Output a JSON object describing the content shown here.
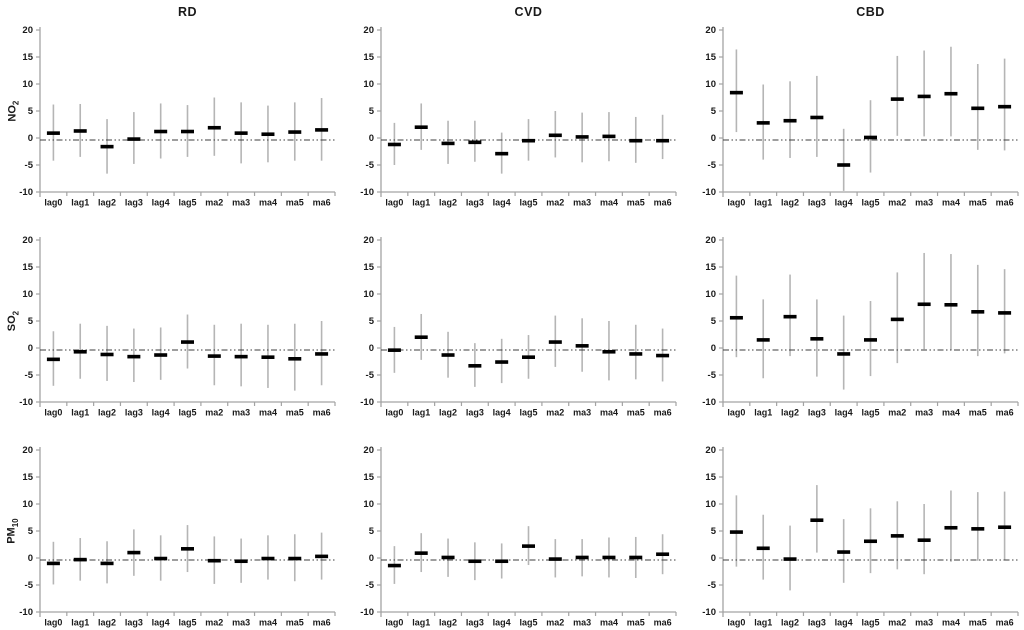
{
  "figure": {
    "background": "#ffffff",
    "columns": [
      "RD",
      "CVD",
      "CBD"
    ],
    "rows": [
      {
        "base": "NO",
        "sub": "2"
      },
      {
        "base": "SO",
        "sub": "2"
      },
      {
        "base": "PM",
        "sub": "10"
      }
    ]
  },
  "colors": {
    "error_bar": "#b5b5b5",
    "marker": "#000000",
    "axis": "#a3a3a3",
    "zero_line": "#3c3c3c",
    "text": "#1a1a1a"
  },
  "axis": {
    "ylim": [
      -10,
      20
    ],
    "yticks": [
      20,
      15,
      10,
      5,
      0,
      -5,
      -10
    ],
    "categories": [
      "lag0",
      "lag1",
      "lag2",
      "lag3",
      "lag4",
      "lag5",
      "ma2",
      "ma3",
      "ma4",
      "ma5",
      "ma6"
    ],
    "zero_reference": 0,
    "grid": "off",
    "legend": "none"
  },
  "chart_data": [
    {
      "type": "errorbar",
      "title": "RD",
      "outcome": "RD",
      "pollutant": "NO2",
      "categories": [
        "lag0",
        "lag1",
        "lag2",
        "lag3",
        "lag4",
        "lag5",
        "ma2",
        "ma3",
        "ma4",
        "ma5",
        "ma6"
      ],
      "values_lo_est_hi": [
        [
          -4.2,
          0.9,
          6.2
        ],
        [
          -3.5,
          1.3,
          6.3
        ],
        [
          -6.6,
          -1.6,
          3.5
        ],
        [
          -4.8,
          -0.2,
          4.8
        ],
        [
          -3.8,
          1.2,
          6.4
        ],
        [
          -3.5,
          1.2,
          6.1
        ],
        [
          -3.3,
          1.9,
          7.5
        ],
        [
          -4.7,
          0.9,
          6.6
        ],
        [
          -4.5,
          0.7,
          6.0
        ],
        [
          -4.2,
          1.1,
          6.6
        ],
        [
          -4.2,
          1.5,
          7.4
        ]
      ]
    },
    {
      "type": "errorbar",
      "title": "CVD",
      "outcome": "CVD",
      "pollutant": "NO2",
      "categories": [
        "lag0",
        "lag1",
        "lag2",
        "lag3",
        "lag4",
        "lag5",
        "ma2",
        "ma3",
        "ma4",
        "ma5",
        "ma6"
      ],
      "values_lo_est_hi": [
        [
          -5.0,
          -1.2,
          2.8
        ],
        [
          -2.2,
          2.0,
          6.4
        ],
        [
          -4.8,
          -1.0,
          3.2
        ],
        [
          -4.4,
          -0.8,
          3.2
        ],
        [
          -6.6,
          -2.9,
          1.0
        ],
        [
          -4.2,
          -0.5,
          3.5
        ],
        [
          -3.6,
          0.5,
          5.0
        ],
        [
          -4.5,
          0.2,
          4.7
        ],
        [
          -4.3,
          0.3,
          4.8
        ],
        [
          -4.6,
          -0.5,
          3.9
        ],
        [
          -3.9,
          -0.5,
          4.3
        ]
      ]
    },
    {
      "type": "errorbar",
      "title": "CBD",
      "outcome": "CBD",
      "pollutant": "NO2",
      "categories": [
        "lag0",
        "lag1",
        "lag2",
        "lag3",
        "lag4",
        "lag5",
        "ma2",
        "ma3",
        "ma4",
        "ma5",
        "ma6"
      ],
      "values_lo_est_hi": [
        [
          1.1,
          8.4,
          16.4
        ],
        [
          -4.0,
          2.8,
          9.9
        ],
        [
          -3.7,
          3.2,
          10.5
        ],
        [
          -3.5,
          3.8,
          11.5
        ],
        [
          -9.8,
          -5.0,
          1.7
        ],
        [
          -6.4,
          0.1,
          7.0
        ],
        [
          0.4,
          7.2,
          15.2
        ],
        [
          0.3,
          7.7,
          16.2
        ],
        [
          0.3,
          8.2,
          16.9
        ],
        [
          -2.2,
          5.5,
          13.7
        ],
        [
          -2.3,
          5.8,
          14.7
        ]
      ]
    },
    {
      "type": "errorbar",
      "title": "",
      "outcome": "RD",
      "pollutant": "SO2",
      "categories": [
        "lag0",
        "lag1",
        "lag2",
        "lag3",
        "lag4",
        "lag5",
        "ma2",
        "ma3",
        "ma4",
        "ma5",
        "ma6"
      ],
      "values_lo_est_hi": [
        [
          -7.0,
          -2.1,
          3.1
        ],
        [
          -5.7,
          -0.7,
          4.5
        ],
        [
          -6.1,
          -1.2,
          4.1
        ],
        [
          -6.3,
          -1.6,
          3.6
        ],
        [
          -5.9,
          -1.3,
          3.8
        ],
        [
          -3.8,
          1.1,
          6.2
        ],
        [
          -6.9,
          -1.5,
          4.3
        ],
        [
          -7.1,
          -1.6,
          4.5
        ],
        [
          -7.4,
          -1.7,
          4.3
        ],
        [
          -7.9,
          -2.0,
          4.5
        ],
        [
          -6.9,
          -1.1,
          5.0
        ]
      ]
    },
    {
      "type": "errorbar",
      "title": "",
      "outcome": "CVD",
      "pollutant": "SO2",
      "categories": [
        "lag0",
        "lag1",
        "lag2",
        "lag3",
        "lag4",
        "lag5",
        "ma2",
        "ma3",
        "ma4",
        "ma5",
        "ma6"
      ],
      "values_lo_est_hi": [
        [
          -4.6,
          -0.4,
          3.9
        ],
        [
          -2.2,
          2.0,
          6.3
        ],
        [
          -5.5,
          -1.3,
          3.0
        ],
        [
          -7.2,
          -3.3,
          0.9
        ],
        [
          -6.5,
          -2.6,
          1.7
        ],
        [
          -5.7,
          -1.7,
          2.4
        ],
        [
          -3.5,
          1.1,
          6.0
        ],
        [
          -4.4,
          0.4,
          5.5
        ],
        [
          -6.0,
          -0.7,
          5.0
        ],
        [
          -5.8,
          -1.1,
          4.3
        ],
        [
          -6.2,
          -1.4,
          3.6
        ]
      ]
    },
    {
      "type": "errorbar",
      "title": "",
      "outcome": "CBD",
      "pollutant": "SO2",
      "categories": [
        "lag0",
        "lag1",
        "lag2",
        "lag3",
        "lag4",
        "lag5",
        "ma2",
        "ma3",
        "ma4",
        "ma5",
        "ma6"
      ],
      "values_lo_est_hi": [
        [
          -1.7,
          5.6,
          13.4
        ],
        [
          -5.6,
          1.5,
          9.0
        ],
        [
          -1.5,
          5.8,
          13.6
        ],
        [
          -5.3,
          1.7,
          9.0
        ],
        [
          -7.7,
          -1.1,
          6.0
        ],
        [
          -5.2,
          1.5,
          8.7
        ],
        [
          -2.8,
          5.3,
          14.0
        ],
        [
          -0.2,
          8.1,
          17.6
        ],
        [
          -0.4,
          8.0,
          17.4
        ],
        [
          -1.5,
          6.7,
          15.4
        ],
        [
          -1.0,
          6.5,
          14.6
        ]
      ]
    },
    {
      "type": "errorbar",
      "title": "",
      "outcome": "RD",
      "pollutant": "PM10",
      "categories": [
        "lag0",
        "lag1",
        "lag2",
        "lag3",
        "lag4",
        "lag5",
        "ma2",
        "ma3",
        "ma4",
        "ma5",
        "ma6"
      ],
      "values_lo_est_hi": [
        [
          -4.9,
          -1.0,
          3.0
        ],
        [
          -4.2,
          -0.3,
          3.7
        ],
        [
          -4.7,
          -1.0,
          3.1
        ],
        [
          -3.3,
          1.0,
          5.3
        ],
        [
          -4.2,
          -0.1,
          4.2
        ],
        [
          -2.6,
          1.7,
          6.1
        ],
        [
          -4.8,
          -0.5,
          4.0
        ],
        [
          -4.6,
          -0.6,
          3.6
        ],
        [
          -4.0,
          -0.1,
          4.2
        ],
        [
          -4.3,
          -0.1,
          4.4
        ],
        [
          -4.0,
          0.3,
          4.7
        ]
      ]
    },
    {
      "type": "errorbar",
      "title": "",
      "outcome": "CVD",
      "pollutant": "PM10",
      "categories": [
        "lag0",
        "lag1",
        "lag2",
        "lag3",
        "lag4",
        "lag5",
        "ma2",
        "ma3",
        "ma4",
        "ma5",
        "ma6"
      ],
      "values_lo_est_hi": [
        [
          -4.8,
          -1.4,
          2.2
        ],
        [
          -2.6,
          0.9,
          4.6
        ],
        [
          -3.5,
          0.1,
          3.6
        ],
        [
          -4.1,
          -0.6,
          2.9
        ],
        [
          -3.8,
          -0.6,
          2.7
        ],
        [
          -1.3,
          2.2,
          5.9
        ],
        [
          -3.6,
          -0.2,
          3.5
        ],
        [
          -3.4,
          0.1,
          3.5
        ],
        [
          -3.6,
          0.1,
          3.8
        ],
        [
          -3.7,
          0.1,
          3.9
        ],
        [
          -3.0,
          0.7,
          4.4
        ]
      ]
    },
    {
      "type": "errorbar",
      "title": "",
      "outcome": "CBD",
      "pollutant": "PM10",
      "categories": [
        "lag0",
        "lag1",
        "lag2",
        "lag3",
        "lag4",
        "lag5",
        "ma2",
        "ma3",
        "ma4",
        "ma5",
        "ma6"
      ],
      "values_lo_est_hi": [
        [
          -1.6,
          4.8,
          11.6
        ],
        [
          -4.0,
          1.8,
          8.0
        ],
        [
          -6.0,
          -0.2,
          6.0
        ],
        [
          1.0,
          7.0,
          13.5
        ],
        [
          -4.6,
          1.1,
          7.2
        ],
        [
          -2.8,
          3.1,
          9.2
        ],
        [
          -2.1,
          4.1,
          10.5
        ],
        [
          -3.0,
          3.3,
          10.0
        ],
        [
          -0.7,
          5.6,
          12.5
        ],
        [
          -0.5,
          5.4,
          12.2
        ],
        [
          -0.3,
          5.7,
          12.3
        ]
      ]
    }
  ]
}
